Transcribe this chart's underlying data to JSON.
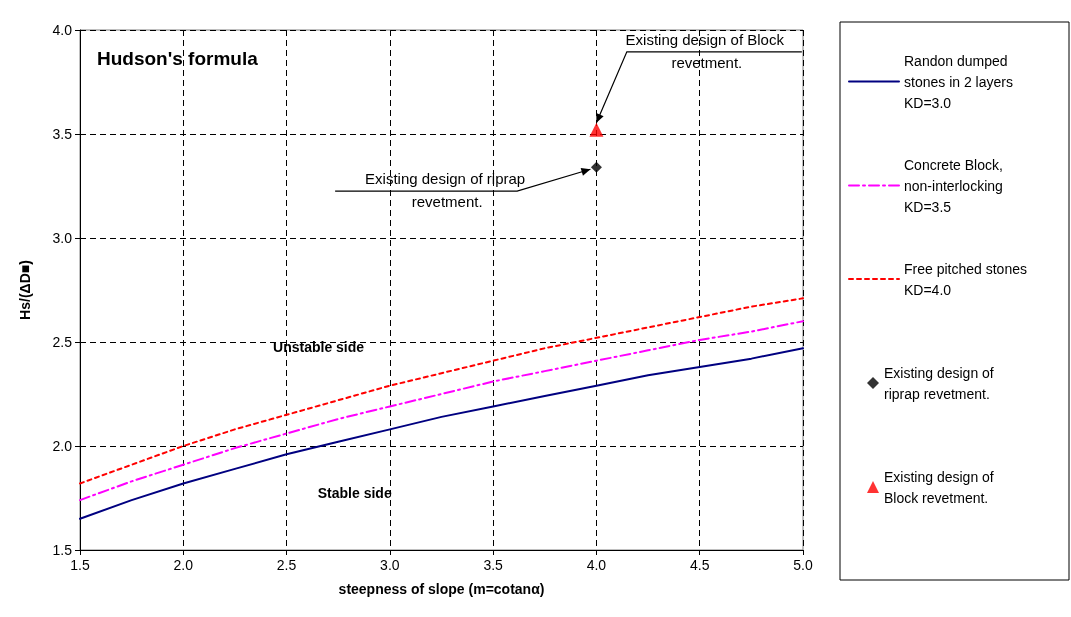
{
  "chart_data": {
    "type": "line",
    "title": "Hudson's formula",
    "xlabel": "steepness of slope (m=cotanα)",
    "ylabel": "Hs/(ΔD■)",
    "x": [
      1.5,
      1.75,
      2.0,
      2.25,
      2.5,
      2.75,
      3.0,
      3.25,
      3.5,
      3.75,
      4.0,
      4.25,
      4.5,
      4.75,
      5.0
    ],
    "series": [
      {
        "name": "Randon dumped stones in 2 layers KD=3.0",
        "color": "#000080",
        "line_style": "solid",
        "values": [
          1.65,
          1.74,
          1.82,
          1.89,
          1.96,
          2.02,
          2.08,
          2.14,
          2.19,
          2.24,
          2.29,
          2.34,
          2.38,
          2.42,
          2.47
        ]
      },
      {
        "name": "Concrete Block, non-interlocking KD=3.5",
        "color": "#ff00ff",
        "line_style": "dashed",
        "values": [
          1.74,
          1.83,
          1.91,
          1.99,
          2.06,
          2.13,
          2.19,
          2.25,
          2.31,
          2.36,
          2.41,
          2.46,
          2.51,
          2.55,
          2.6
        ]
      },
      {
        "name": "Free pitched stones KD=4.0",
        "color": "#ff0000",
        "line_style": "dotted",
        "values": [
          1.82,
          1.91,
          2.0,
          2.08,
          2.15,
          2.22,
          2.29,
          2.35,
          2.41,
          2.47,
          2.52,
          2.57,
          2.62,
          2.67,
          2.71
        ]
      },
      {
        "name": "Existing design of riprap revetment.",
        "type": "scatter",
        "marker": "diamond",
        "color": "#000000",
        "x": [
          4.0
        ],
        "values": [
          3.34
        ]
      },
      {
        "name": "Existing design of Block revetment.",
        "type": "scatter",
        "marker": "triangle",
        "color": "#ff0000",
        "x": [
          4.0
        ],
        "values": [
          3.52
        ]
      }
    ],
    "xlim": [
      1.5,
      5.0
    ],
    "xticks": [
      1.5,
      {
        "value": 2,
        "label": "2.0"
      },
      2.5,
      {
        "value": 3,
        "label": "3.0"
      },
      3.5,
      {
        "value": 4,
        "label": "4.0"
      },
      4.5,
      {
        "value": 5,
        "label": "5.0"
      }
    ],
    "ylim": [
      1.5,
      4.0
    ],
    "yticks": [
      1.5,
      {
        "value": 2,
        "label": "2.0"
      },
      2.5,
      {
        "value": 3,
        "label": "3.0"
      },
      3.5,
      {
        "value": 4,
        "label": "4.0"
      }
    ],
    "grid": true,
    "legend": "right",
    "marker": "none",
    "annotations": [
      {
        "text": "Existing design of Block revetment.",
        "x": 4.0,
        "y": 3.52
      },
      {
        "text": "Existing design of riprap revetment.",
        "x": 4.0,
        "y": 3.34
      },
      "Unstable side",
      "Stable side"
    ]
  }
}
